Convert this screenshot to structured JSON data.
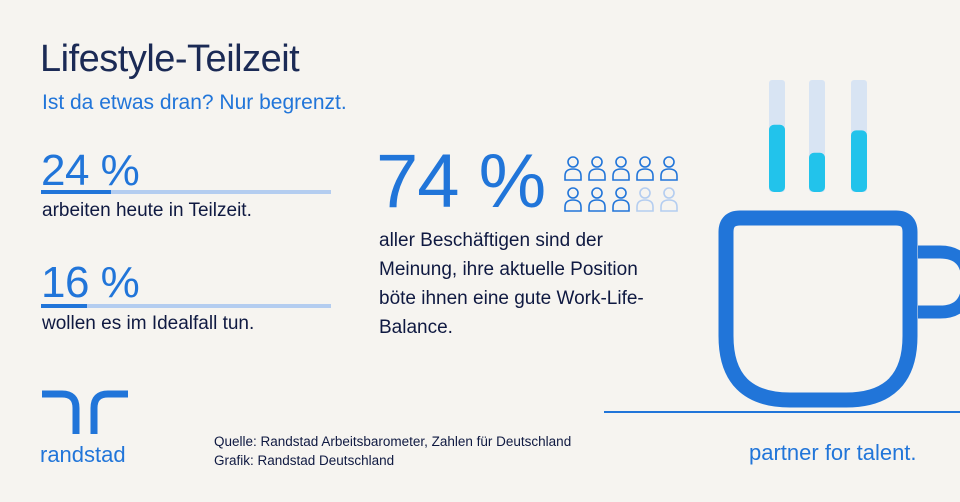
{
  "title": "Lifestyle-Teilzeit",
  "subtitle": "Ist da etwas dran? Nur begrenzt.",
  "stats": [
    {
      "value": "24 %",
      "caption": "arbeiten heute in Teilzeit.",
      "fraction": 0.24
    },
    {
      "value": "16 %",
      "caption": "wollen es im Idealfall tun.",
      "fraction": 0.16
    }
  ],
  "highlight": {
    "value": "74 %",
    "text": "aller Beschäftigen sind der Meinung, ihre aktuelle Position böte ihnen eine gute Work-Life-Balance.",
    "people_total": 10,
    "people_filled": 7.4
  },
  "source_line": "Quelle: Randstad Arbeitsbarometer, Zahlen für Deutschland",
  "graphic_line": "Grafik: Randstad Deutschland",
  "brand": "randstad",
  "tagline": "partner for talent.",
  "steam_levels": [
    0.6,
    0.35,
    0.55
  ],
  "colors": {
    "primary_blue": "#2175d9",
    "navy": "#0f1941",
    "light_blue": "#b4cdf0",
    "cyan": "#22c3eb",
    "background": "#f6f4f0"
  }
}
